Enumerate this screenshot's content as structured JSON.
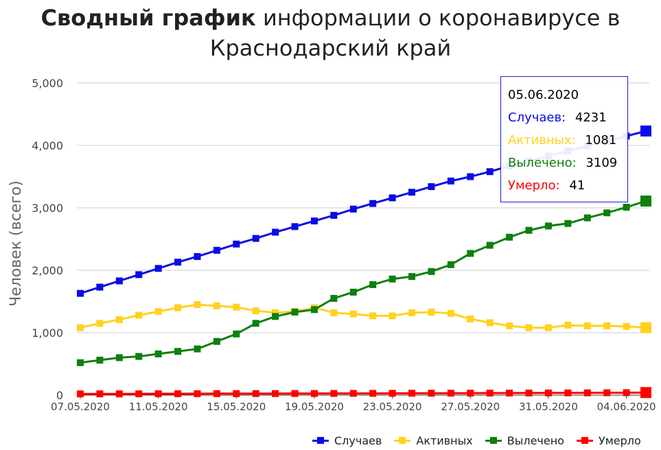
{
  "title": {
    "bold": "Сводный график",
    "rest": " информации о коронавирусе в",
    "line2": "Краснодарский край"
  },
  "colors": {
    "cases": "#0a0ae6",
    "active": "#ffd21f",
    "recovered": "#0d800d",
    "deaths": "#ff0000"
  },
  "tooltip": {
    "date": "05.06.2020",
    "rows": [
      {
        "label": "Случаев:",
        "value": "4231",
        "color": "#0a0ae6"
      },
      {
        "label": "Активных:",
        "value": "1081",
        "color": "#ffd21f"
      },
      {
        "label": "Вылечено:",
        "value": "3109",
        "color": "#0d800d"
      },
      {
        "label": "Умерло:",
        "value": "41",
        "color": "#ff0000"
      }
    ]
  },
  "legend": [
    {
      "label": "Случаев",
      "color": "#0a0ae6"
    },
    {
      "label": "Активных",
      "color": "#ffd21f"
    },
    {
      "label": "Вылечено",
      "color": "#0d800d"
    },
    {
      "label": "Умерло",
      "color": "#ff0000"
    }
  ],
  "chart_data": {
    "type": "line",
    "title": "Сводный график информации о коронавирусе в Краснодарский край",
    "ylabel": "Человек (всего)",
    "xlabel": "",
    "ylim": [
      0,
      5000
    ],
    "yticks": [
      "0",
      "1,000",
      "2,000",
      "3,000",
      "4,000",
      "5,000"
    ],
    "xtick_labels": [
      "07.05.2020",
      "11.05.2020",
      "15.05.2020",
      "19.05.2020",
      "23.05.2020",
      "27.05.2020",
      "31.05.2020",
      "04.06.2020"
    ],
    "grid": true,
    "legend_position": "bottom-right",
    "x": [
      "07.05.2020",
      "08.05.2020",
      "09.05.2020",
      "10.05.2020",
      "11.05.2020",
      "12.05.2020",
      "13.05.2020",
      "14.05.2020",
      "15.05.2020",
      "16.05.2020",
      "17.05.2020",
      "18.05.2020",
      "19.05.2020",
      "20.05.2020",
      "21.05.2020",
      "22.05.2020",
      "23.05.2020",
      "24.05.2020",
      "25.05.2020",
      "26.05.2020",
      "27.05.2020",
      "28.05.2020",
      "29.05.2020",
      "30.05.2020",
      "31.05.2020",
      "01.06.2020",
      "02.06.2020",
      "03.06.2020",
      "04.06.2020",
      "05.06.2020"
    ],
    "series": [
      {
        "name": "Случаев",
        "color": "#0a0ae6",
        "values": [
          1630,
          1730,
          1830,
          1930,
          2030,
          2130,
          2220,
          2320,
          2420,
          2510,
          2610,
          2700,
          2790,
          2880,
          2980,
          3070,
          3160,
          3250,
          3340,
          3430,
          3500,
          3580,
          3670,
          3750,
          3830,
          3910,
          3990,
          4070,
          4150,
          4231
        ]
      },
      {
        "name": "Активных",
        "color": "#ffd21f",
        "values": [
          1080,
          1150,
          1210,
          1280,
          1340,
          1400,
          1450,
          1430,
          1410,
          1350,
          1320,
          1340,
          1400,
          1320,
          1300,
          1270,
          1270,
          1320,
          1330,
          1310,
          1220,
          1160,
          1110,
          1080,
          1080,
          1120,
          1110,
          1110,
          1100,
          1081
        ]
      },
      {
        "name": "Вылечено",
        "color": "#0d800d",
        "values": [
          520,
          560,
          600,
          620,
          660,
          700,
          740,
          860,
          980,
          1150,
          1260,
          1330,
          1370,
          1550,
          1650,
          1770,
          1860,
          1900,
          1980,
          2090,
          2270,
          2400,
          2530,
          2640,
          2710,
          2750,
          2840,
          2920,
          3010,
          3109
        ]
      },
      {
        "name": "Умерло",
        "color": "#ff0000",
        "values": [
          20,
          20,
          20,
          21,
          22,
          22,
          23,
          24,
          24,
          25,
          25,
          26,
          26,
          27,
          28,
          28,
          29,
          30,
          30,
          31,
          32,
          33,
          33,
          34,
          35,
          36,
          37,
          38,
          39,
          41
        ]
      }
    ]
  }
}
